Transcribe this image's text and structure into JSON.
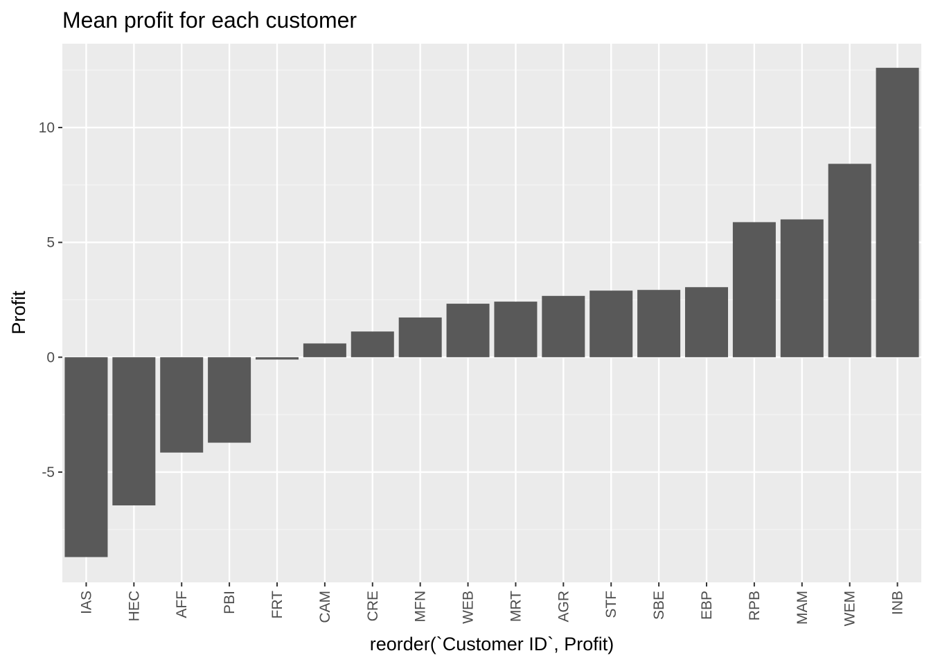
{
  "chart_data": {
    "type": "bar",
    "title": "Mean profit for each customer",
    "xlabel": "reorder(`Customer ID`, Profit)",
    "ylabel": "Profit",
    "categories": [
      "IAS",
      "HEC",
      "AFF",
      "PBI",
      "FRT",
      "CAM",
      "CRE",
      "MFN",
      "WEB",
      "MRT",
      "AGR",
      "STF",
      "SBE",
      "EBP",
      "RPB",
      "MAM",
      "WEM",
      "INB"
    ],
    "values": [
      -8.7,
      -6.45,
      -4.15,
      -3.72,
      -0.1,
      0.6,
      1.12,
      1.73,
      2.33,
      2.42,
      2.67,
      2.9,
      2.93,
      3.05,
      5.88,
      6.0,
      8.42,
      12.6
    ],
    "ylim": [
      -9.8,
      13.65
    ],
    "yticks": [
      -5,
      0,
      5,
      10
    ],
    "ytick_labels": [
      "-5",
      "0",
      "5",
      "10"
    ],
    "grid": true,
    "legend": "none",
    "colors": {
      "bar": "#595959",
      "panel": "#ebebeb",
      "grid_major": "#ffffff",
      "grid_minor": "#f5f5f5",
      "tick_text": "#4d4d4d",
      "tick_mark": "#333333"
    }
  }
}
